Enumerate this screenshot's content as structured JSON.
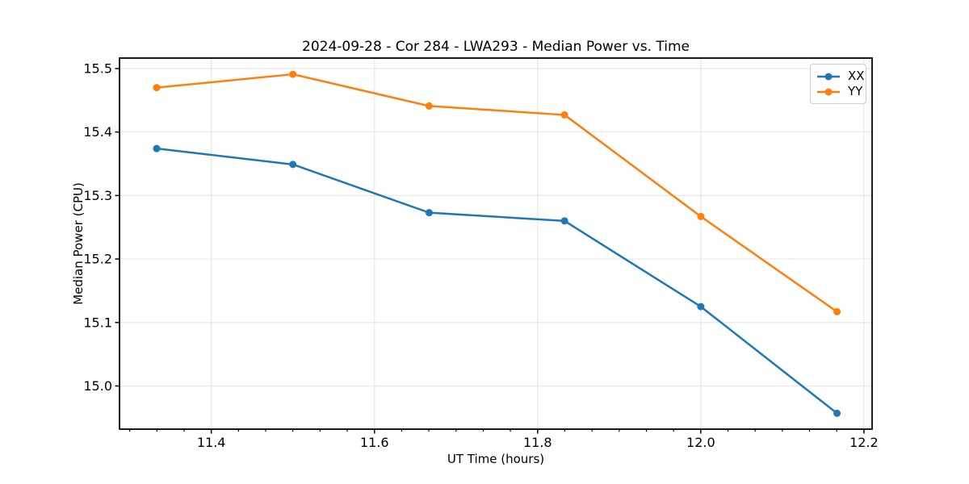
{
  "chart_data": {
    "type": "line",
    "title": "2024-09-28 - Cor 284 - LWA293 - Median Power vs. Time",
    "xlabel": "UT Time (hours)",
    "ylabel": "Median Power (CPU)",
    "x": [
      11.333,
      11.5,
      11.667,
      11.833,
      12.0,
      12.167
    ],
    "series": [
      {
        "name": "XX",
        "color": "#1f77b4",
        "values": [
          15.374,
          15.349,
          15.273,
          15.26,
          15.125,
          14.957
        ]
      },
      {
        "name": "YY",
        "color": "#ff7f0e",
        "values": [
          15.47,
          15.491,
          15.441,
          15.427,
          15.267,
          15.117
        ]
      }
    ],
    "xlim": [
      11.2875,
      12.21
    ],
    "ylim": [
      14.932,
      15.5165
    ],
    "xticks": [
      11.4,
      11.6,
      11.8,
      12.0,
      12.2
    ],
    "yticks": [
      15.0,
      15.1,
      15.2,
      15.3,
      15.4,
      15.5
    ],
    "x_minor_step": 0.0333333,
    "x_tick_decimals": 1,
    "y_tick_decimals": 1,
    "grid": true,
    "grid_color": "#e7e7e7",
    "spine_color": "#000000",
    "tick_color": "#000000",
    "legend_position": "upper right",
    "line_width": 2.5,
    "marker": "o",
    "marker_radius": 4.5
  }
}
